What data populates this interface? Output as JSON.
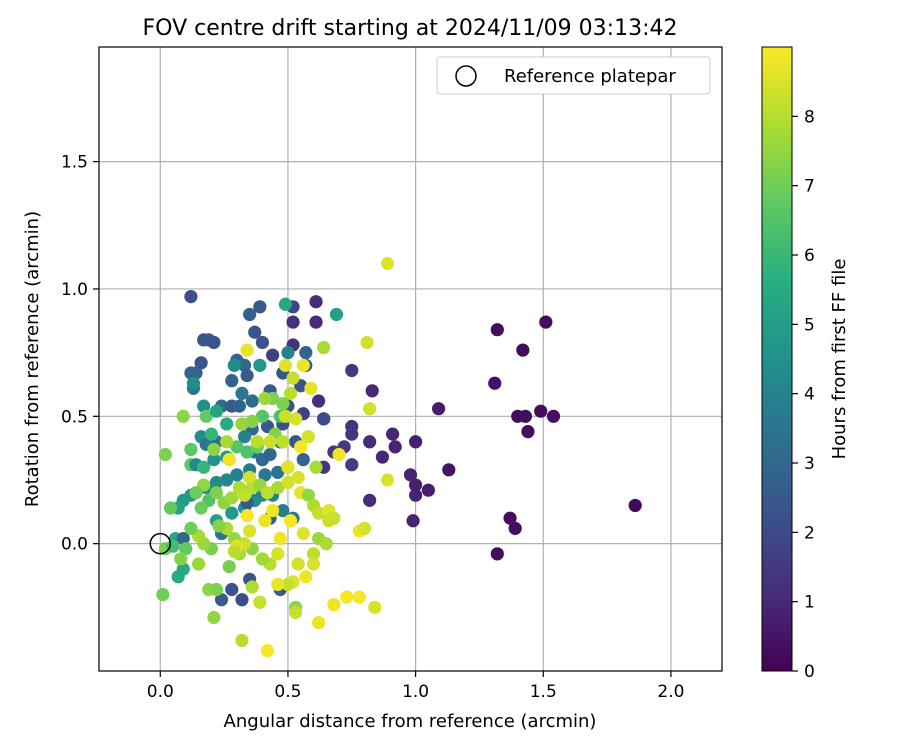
{
  "chart_data": {
    "type": "scatter",
    "title": "FOV centre drift starting at 2024/11/09 03:13:42",
    "xlabel": "Angular distance from reference (arcmin)",
    "ylabel": "Rotation from reference (arcmin)",
    "xlim": [
      -0.24,
      2.2
    ],
    "ylim": [
      -0.5,
      1.95
    ],
    "xticks": [
      0.0,
      0.5,
      1.0,
      1.5,
      2.0
    ],
    "xtick_labels": [
      "0.0",
      "0.5",
      "1.0",
      "1.5",
      "2.0"
    ],
    "yticks": [
      0.0,
      0.5,
      1.0,
      1.5
    ],
    "ytick_labels": [
      "0.0",
      "0.5",
      "1.0",
      "1.5"
    ],
    "grid": true,
    "legend": {
      "location": "top-right",
      "entries": [
        "Reference platepar"
      ]
    },
    "reference_point": {
      "x": 0.0,
      "y": 0.0
    },
    "colorbar": {
      "label": "Hours from first FF file",
      "range": [
        0,
        9
      ],
      "ticks": [
        0,
        1,
        2,
        3,
        4,
        5,
        6,
        7,
        8
      ],
      "tick_labels": [
        "0",
        "1",
        "2",
        "3",
        "4",
        "5",
        "6",
        "7",
        "8"
      ],
      "colormap": "viridis"
    },
    "points": [
      {
        "x": 1.32,
        "y": 0.84,
        "c": 0.3
      },
      {
        "x": 1.42,
        "y": 0.76,
        "c": 0.3
      },
      {
        "x": 1.51,
        "y": 0.87,
        "c": 0.3
      },
      {
        "x": 1.31,
        "y": 0.63,
        "c": 0.4
      },
      {
        "x": 1.4,
        "y": 0.5,
        "c": 0.3
      },
      {
        "x": 1.43,
        "y": 0.5,
        "c": 0.3
      },
      {
        "x": 1.49,
        "y": 0.52,
        "c": 0.3
      },
      {
        "x": 1.54,
        "y": 0.5,
        "c": 0.3
      },
      {
        "x": 1.44,
        "y": 0.44,
        "c": 0.3
      },
      {
        "x": 1.86,
        "y": 0.15,
        "c": 0.2
      },
      {
        "x": 1.37,
        "y": 0.1,
        "c": 0.3
      },
      {
        "x": 1.39,
        "y": 0.06,
        "c": 0.3
      },
      {
        "x": 1.32,
        "y": -0.04,
        "c": 0.3
      },
      {
        "x": 1.13,
        "y": 0.29,
        "c": 0.5
      },
      {
        "x": 1.09,
        "y": 0.53,
        "c": 0.7
      },
      {
        "x": 1.0,
        "y": 0.4,
        "c": 0.8
      },
      {
        "x": 0.98,
        "y": 0.27,
        "c": 0.9
      },
      {
        "x": 1.0,
        "y": 0.23,
        "c": 0.8
      },
      {
        "x": 1.05,
        "y": 0.21,
        "c": 0.7
      },
      {
        "x": 1.0,
        "y": 0.19,
        "c": 0.9
      },
      {
        "x": 0.99,
        "y": 0.09,
        "c": 0.9
      },
      {
        "x": 0.91,
        "y": 0.43,
        "c": 1.0
      },
      {
        "x": 0.92,
        "y": 0.38,
        "c": 0.9
      },
      {
        "x": 0.87,
        "y": 0.34,
        "c": 1.0
      },
      {
        "x": 0.82,
        "y": 0.4,
        "c": 1.1
      },
      {
        "x": 0.83,
        "y": 0.6,
        "c": 1.0
      },
      {
        "x": 0.75,
        "y": 0.68,
        "c": 1.4
      },
      {
        "x": 0.75,
        "y": 0.46,
        "c": 1.3
      },
      {
        "x": 0.75,
        "y": 0.43,
        "c": 1.4
      },
      {
        "x": 0.72,
        "y": 0.38,
        "c": 1.5
      },
      {
        "x": 0.75,
        "y": 0.31,
        "c": 1.6
      },
      {
        "x": 0.68,
        "y": 0.36,
        "c": 1.5
      },
      {
        "x": 0.64,
        "y": 0.49,
        "c": 1.3
      },
      {
        "x": 0.62,
        "y": 0.56,
        "c": 1.2
      },
      {
        "x": 0.61,
        "y": 0.87,
        "c": 1.1
      },
      {
        "x": 0.61,
        "y": 0.95,
        "c": 1.1
      },
      {
        "x": 0.52,
        "y": 0.87,
        "c": 1.2
      },
      {
        "x": 0.52,
        "y": 0.78,
        "c": 1.3
      },
      {
        "x": 0.52,
        "y": 0.93,
        "c": 1.9
      },
      {
        "x": 0.82,
        "y": 0.17,
        "c": 1.1
      },
      {
        "x": 0.64,
        "y": 0.3,
        "c": 1.4
      },
      {
        "x": 0.89,
        "y": 0.25,
        "c": 8.5
      },
      {
        "x": 0.89,
        "y": 1.1,
        "c": 8.6
      },
      {
        "x": 0.81,
        "y": 0.79,
        "c": 8.4
      },
      {
        "x": 0.82,
        "y": 0.53,
        "c": 8.4
      },
      {
        "x": 0.12,
        "y": 0.97,
        "c": 2.2
      },
      {
        "x": 0.17,
        "y": 0.8,
        "c": 2.3
      },
      {
        "x": 0.19,
        "y": 0.8,
        "c": 2.5
      },
      {
        "x": 0.21,
        "y": 0.79,
        "c": 2.3
      },
      {
        "x": 0.16,
        "y": 0.71,
        "c": 2.4
      },
      {
        "x": 0.12,
        "y": 0.67,
        "c": 2.8
      },
      {
        "x": 0.14,
        "y": 0.67,
        "c": 2.9
      },
      {
        "x": 0.13,
        "y": 0.61,
        "c": 3.5
      },
      {
        "x": 0.24,
        "y": 0.54,
        "c": 3.2
      },
      {
        "x": 0.28,
        "y": 0.54,
        "c": 2.5
      },
      {
        "x": 0.35,
        "y": 0.9,
        "c": 2.7
      },
      {
        "x": 0.39,
        "y": 0.93,
        "c": 2.5
      },
      {
        "x": 0.37,
        "y": 0.83,
        "c": 2.4
      },
      {
        "x": 0.4,
        "y": 0.79,
        "c": 2.2
      },
      {
        "x": 0.44,
        "y": 0.74,
        "c": 1.7
      },
      {
        "x": 0.3,
        "y": 0.72,
        "c": 2.8
      },
      {
        "x": 0.33,
        "y": 0.7,
        "c": 3.0
      },
      {
        "x": 0.34,
        "y": 0.66,
        "c": 2.6
      },
      {
        "x": 0.28,
        "y": 0.64,
        "c": 2.9
      },
      {
        "x": 0.32,
        "y": 0.59,
        "c": 3.6
      },
      {
        "x": 0.31,
        "y": 0.54,
        "c": 2.9
      },
      {
        "x": 0.36,
        "y": 0.56,
        "c": 3.1
      },
      {
        "x": 0.43,
        "y": 0.6,
        "c": 2.6
      },
      {
        "x": 0.48,
        "y": 0.67,
        "c": 2.4
      },
      {
        "x": 0.5,
        "y": 0.75,
        "c": 3.9
      },
      {
        "x": 0.57,
        "y": 0.75,
        "c": 2.8
      },
      {
        "x": 0.57,
        "y": 0.7,
        "c": 2.5
      },
      {
        "x": 0.49,
        "y": 0.94,
        "c": 5.4
      },
      {
        "x": 0.69,
        "y": 0.9,
        "c": 5.0
      },
      {
        "x": 0.39,
        "y": 0.7,
        "c": 4.8
      },
      {
        "x": 0.29,
        "y": 0.7,
        "c": 4.4
      },
      {
        "x": 0.13,
        "y": 0.63,
        "c": 4.3
      },
      {
        "x": 0.17,
        "y": 0.54,
        "c": 4.4
      },
      {
        "x": 0.55,
        "y": 0.62,
        "c": 2.3
      },
      {
        "x": 0.5,
        "y": 0.54,
        "c": 2.4
      },
      {
        "x": 0.56,
        "y": 0.51,
        "c": 1.7
      },
      {
        "x": 0.64,
        "y": 0.49,
        "c": 2.0
      },
      {
        "x": 0.48,
        "y": 0.47,
        "c": 2.2
      },
      {
        "x": 0.42,
        "y": 0.46,
        "c": 2.5
      },
      {
        "x": 0.36,
        "y": 0.45,
        "c": 3.0
      },
      {
        "x": 0.33,
        "y": 0.42,
        "c": 4.0
      },
      {
        "x": 0.26,
        "y": 0.47,
        "c": 5.5
      },
      {
        "x": 0.22,
        "y": 0.4,
        "c": 3.2
      },
      {
        "x": 0.16,
        "y": 0.42,
        "c": 4.4
      },
      {
        "x": 0.18,
        "y": 0.39,
        "c": 3.5
      },
      {
        "x": 0.12,
        "y": 0.31,
        "c": 6.7
      },
      {
        "x": 0.14,
        "y": 0.31,
        "c": 4.2
      },
      {
        "x": 0.17,
        "y": 0.3,
        "c": 5.9
      },
      {
        "x": 0.21,
        "y": 0.33,
        "c": 4.6
      },
      {
        "x": 0.26,
        "y": 0.34,
        "c": 4.9
      },
      {
        "x": 0.37,
        "y": 0.36,
        "c": 3.6
      },
      {
        "x": 0.4,
        "y": 0.33,
        "c": 3.1
      },
      {
        "x": 0.43,
        "y": 0.35,
        "c": 3.0
      },
      {
        "x": 0.47,
        "y": 0.4,
        "c": 2.7
      },
      {
        "x": 0.53,
        "y": 0.4,
        "c": 2.4
      },
      {
        "x": 0.56,
        "y": 0.33,
        "c": 2.9
      },
      {
        "x": 0.5,
        "y": 0.3,
        "c": 3.2
      },
      {
        "x": 0.46,
        "y": 0.28,
        "c": 3.4
      },
      {
        "x": 0.41,
        "y": 0.27,
        "c": 3.6
      },
      {
        "x": 0.35,
        "y": 0.29,
        "c": 3.7
      },
      {
        "x": 0.3,
        "y": 0.27,
        "c": 3.9
      },
      {
        "x": 0.26,
        "y": 0.25,
        "c": 4.1
      },
      {
        "x": 0.22,
        "y": 0.24,
        "c": 4.3
      },
      {
        "x": 0.18,
        "y": 0.22,
        "c": 4.5
      },
      {
        "x": 0.12,
        "y": 0.19,
        "c": 4.7
      },
      {
        "x": 0.09,
        "y": 0.17,
        "c": 4.9
      },
      {
        "x": 0.07,
        "y": 0.14,
        "c": 5.2
      },
      {
        "x": 0.06,
        "y": 0.02,
        "c": 5.3
      },
      {
        "x": 0.07,
        "y": -0.13,
        "c": 5.5
      },
      {
        "x": 0.09,
        "y": -0.1,
        "c": 5.4
      },
      {
        "x": 0.22,
        "y": 0.09,
        "c": 5.0
      },
      {
        "x": 0.28,
        "y": 0.12,
        "c": 4.8
      },
      {
        "x": 0.33,
        "y": 0.14,
        "c": 4.6
      },
      {
        "x": 0.37,
        "y": 0.17,
        "c": 4.4
      },
      {
        "x": 0.4,
        "y": 0.19,
        "c": 4.2
      },
      {
        "x": 0.44,
        "y": 0.19,
        "c": 4.0
      },
      {
        "x": 0.48,
        "y": 0.13,
        "c": 3.8
      },
      {
        "x": 0.52,
        "y": 0.1,
        "c": 3.6
      },
      {
        "x": 0.34,
        "y": 0.16,
        "c": 2.5
      },
      {
        "x": 0.43,
        "y": 0.1,
        "c": 2.8
      },
      {
        "x": 0.47,
        "y": -0.18,
        "c": 2.6
      },
      {
        "x": 0.35,
        "y": -0.14,
        "c": 2.4
      },
      {
        "x": 0.24,
        "y": -0.22,
        "c": 2.6
      },
      {
        "x": 0.28,
        "y": -0.18,
        "c": 2.3
      },
      {
        "x": 0.32,
        "y": -0.22,
        "c": 2.1
      },
      {
        "x": 0.09,
        "y": 0.02,
        "c": 3.0
      },
      {
        "x": 0.24,
        "y": 0.04,
        "c": 3.4
      },
      {
        "x": 0.04,
        "y": 0.14,
        "c": 6.8
      },
      {
        "x": 0.02,
        "y": 0.35,
        "c": 7.2
      },
      {
        "x": 0.02,
        "y": -0.02,
        "c": 7.1
      },
      {
        "x": 0.01,
        "y": -0.2,
        "c": 7.0
      },
      {
        "x": 0.09,
        "y": 0.5,
        "c": 7.4
      },
      {
        "x": 0.18,
        "y": 0.5,
        "c": 6.8
      },
      {
        "x": 0.22,
        "y": 0.52,
        "c": 5.2
      },
      {
        "x": 0.12,
        "y": 0.37,
        "c": 6.7
      },
      {
        "x": 0.2,
        "y": 0.43,
        "c": 5.9
      },
      {
        "x": 0.27,
        "y": 0.33,
        "c": 8.3
      },
      {
        "x": 0.3,
        "y": 0.38,
        "c": 6.6
      },
      {
        "x": 0.34,
        "y": 0.36,
        "c": 6.4
      },
      {
        "x": 0.38,
        "y": 0.38,
        "c": 6.9
      },
      {
        "x": 0.4,
        "y": 0.5,
        "c": 6.6
      },
      {
        "x": 0.45,
        "y": 0.43,
        "c": 7.3
      },
      {
        "x": 0.47,
        "y": 0.5,
        "c": 6.3
      },
      {
        "x": 0.44,
        "y": 0.57,
        "c": 7.2
      },
      {
        "x": 0.41,
        "y": 0.57,
        "c": 7.6
      },
      {
        "x": 0.36,
        "y": 0.48,
        "c": 7.3
      },
      {
        "x": 0.32,
        "y": 0.47,
        "c": 7.5
      },
      {
        "x": 0.26,
        "y": 0.4,
        "c": 7.8
      },
      {
        "x": 0.21,
        "y": 0.37,
        "c": 7.4
      },
      {
        "x": 0.17,
        "y": 0.23,
        "c": 7.5
      },
      {
        "x": 0.14,
        "y": 0.2,
        "c": 6.9
      },
      {
        "x": 0.19,
        "y": 0.17,
        "c": 6.5
      },
      {
        "x": 0.16,
        "y": 0.14,
        "c": 6.9
      },
      {
        "x": 0.22,
        "y": 0.2,
        "c": 7.2
      },
      {
        "x": 0.25,
        "y": 0.16,
        "c": 7.4
      },
      {
        "x": 0.28,
        "y": 0.18,
        "c": 7.7
      },
      {
        "x": 0.31,
        "y": 0.22,
        "c": 7.9
      },
      {
        "x": 0.33,
        "y": 0.19,
        "c": 8.2
      },
      {
        "x": 0.36,
        "y": 0.22,
        "c": 8.0
      },
      {
        "x": 0.39,
        "y": 0.23,
        "c": 7.6
      },
      {
        "x": 0.42,
        "y": 0.2,
        "c": 8.1
      },
      {
        "x": 0.46,
        "y": 0.22,
        "c": 7.8
      },
      {
        "x": 0.5,
        "y": 0.24,
        "c": 8.4
      },
      {
        "x": 0.54,
        "y": 0.26,
        "c": 8.5
      },
      {
        "x": 0.55,
        "y": 0.2,
        "c": 8.7
      },
      {
        "x": 0.58,
        "y": 0.19,
        "c": 7.5
      },
      {
        "x": 0.6,
        "y": 0.15,
        "c": 7.9
      },
      {
        "x": 0.62,
        "y": 0.12,
        "c": 8.2
      },
      {
        "x": 0.66,
        "y": 0.13,
        "c": 8.6
      },
      {
        "x": 0.66,
        "y": 0.09,
        "c": 8.3
      },
      {
        "x": 0.62,
        "y": 0.02,
        "c": 7.6
      },
      {
        "x": 0.65,
        "y": 0.0,
        "c": 7.8
      },
      {
        "x": 0.6,
        "y": -0.04,
        "c": 8.1
      },
      {
        "x": 0.6,
        "y": -0.08,
        "c": 8.5
      },
      {
        "x": 0.57,
        "y": -0.13,
        "c": 8.8
      },
      {
        "x": 0.54,
        "y": -0.08,
        "c": 8.4
      },
      {
        "x": 0.52,
        "y": -0.15,
        "c": 8.6
      },
      {
        "x": 0.5,
        "y": -0.16,
        "c": 8.2
      },
      {
        "x": 0.46,
        "y": -0.16,
        "c": 8.7
      },
      {
        "x": 0.43,
        "y": -0.08,
        "c": 8.0
      },
      {
        "x": 0.4,
        "y": -0.06,
        "c": 7.7
      },
      {
        "x": 0.36,
        "y": -0.02,
        "c": 7.4
      },
      {
        "x": 0.33,
        "y": 0.0,
        "c": 8.3
      },
      {
        "x": 0.29,
        "y": 0.02,
        "c": 7.5
      },
      {
        "x": 0.26,
        "y": 0.06,
        "c": 7.9
      },
      {
        "x": 0.23,
        "y": 0.07,
        "c": 7.3
      },
      {
        "x": 0.2,
        "y": -0.02,
        "c": 7.1
      },
      {
        "x": 0.17,
        "y": 0.0,
        "c": 7.6
      },
      {
        "x": 0.15,
        "y": 0.03,
        "c": 7.8
      },
      {
        "x": 0.12,
        "y": 0.06,
        "c": 7.0
      },
      {
        "x": 0.1,
        "y": -0.02,
        "c": 6.8
      },
      {
        "x": 0.08,
        "y": -0.06,
        "c": 7.3
      },
      {
        "x": 0.15,
        "y": -0.08,
        "c": 7.6
      },
      {
        "x": 0.19,
        "y": -0.18,
        "c": 7.4
      },
      {
        "x": 0.21,
        "y": -0.29,
        "c": 7.5
      },
      {
        "x": 0.22,
        "y": -0.18,
        "c": 7.2
      },
      {
        "x": 0.27,
        "y": -0.09,
        "c": 7.1
      },
      {
        "x": 0.31,
        "y": -0.04,
        "c": 7.8
      },
      {
        "x": 0.32,
        "y": -0.38,
        "c": 8.0
      },
      {
        "x": 0.42,
        "y": -0.42,
        "c": 8.9
      },
      {
        "x": 0.36,
        "y": -0.17,
        "c": 7.9
      },
      {
        "x": 0.39,
        "y": -0.23,
        "c": 8.2
      },
      {
        "x": 0.46,
        "y": -0.04,
        "c": 8.5
      },
      {
        "x": 0.53,
        "y": -0.25,
        "c": 7.4
      },
      {
        "x": 0.53,
        "y": -0.27,
        "c": 8.2
      },
      {
        "x": 0.62,
        "y": -0.31,
        "c": 8.7
      },
      {
        "x": 0.68,
        "y": -0.24,
        "c": 8.8
      },
      {
        "x": 0.73,
        "y": -0.21,
        "c": 8.9
      },
      {
        "x": 0.78,
        "y": -0.21,
        "c": 8.9
      },
      {
        "x": 0.84,
        "y": -0.25,
        "c": 8.5
      },
      {
        "x": 0.78,
        "y": 0.05,
        "c": 8.8
      },
      {
        "x": 0.8,
        "y": 0.06,
        "c": 8.4
      },
      {
        "x": 0.68,
        "y": 0.1,
        "c": 8.3
      },
      {
        "x": 0.61,
        "y": 0.3,
        "c": 7.8
      },
      {
        "x": 0.58,
        "y": 0.42,
        "c": 8.4
      },
      {
        "x": 0.59,
        "y": 0.61,
        "c": 8.7
      },
      {
        "x": 0.56,
        "y": 0.7,
        "c": 8.8
      },
      {
        "x": 0.52,
        "y": 0.65,
        "c": 8.2
      },
      {
        "x": 0.49,
        "y": 0.7,
        "c": 8.6
      },
      {
        "x": 0.51,
        "y": 0.59,
        "c": 8.0
      },
      {
        "x": 0.48,
        "y": 0.55,
        "c": 7.2
      },
      {
        "x": 0.53,
        "y": 0.49,
        "c": 8.5
      },
      {
        "x": 0.49,
        "y": 0.5,
        "c": 8.3
      },
      {
        "x": 0.55,
        "y": 0.38,
        "c": 8.9
      },
      {
        "x": 0.5,
        "y": 0.3,
        "c": 8.6
      },
      {
        "x": 0.48,
        "y": 0.4,
        "c": 8.1
      },
      {
        "x": 0.43,
        "y": 0.4,
        "c": 8.3
      },
      {
        "x": 0.38,
        "y": 0.4,
        "c": 8.0
      },
      {
        "x": 0.34,
        "y": 0.76,
        "c": 8.7
      },
      {
        "x": 0.27,
        "y": 0.33,
        "c": 8.8
      },
      {
        "x": 0.35,
        "y": 0.26,
        "c": 8.4
      },
      {
        "x": 0.44,
        "y": 0.13,
        "c": 8.8
      },
      {
        "x": 0.41,
        "y": 0.09,
        "c": 8.7
      },
      {
        "x": 0.35,
        "y": 0.05,
        "c": 8.5
      },
      {
        "x": 0.34,
        "y": 0.11,
        "c": 8.9
      },
      {
        "x": 0.3,
        "y": -0.01,
        "c": 8.6
      },
      {
        "x": 0.29,
        "y": -0.03,
        "c": 8.1
      },
      {
        "x": 0.56,
        "y": 0.04,
        "c": 8.6
      },
      {
        "x": 0.47,
        "y": 0.02,
        "c": 8.8
      },
      {
        "x": 0.51,
        "y": 0.09,
        "c": 8.9
      },
      {
        "x": 0.7,
        "y": 0.35,
        "c": 8.8
      },
      {
        "x": 0.64,
        "y": 0.77,
        "c": 7.8
      },
      {
        "x": 0.05,
        "y": -0.01,
        "c": 6.2
      }
    ]
  }
}
